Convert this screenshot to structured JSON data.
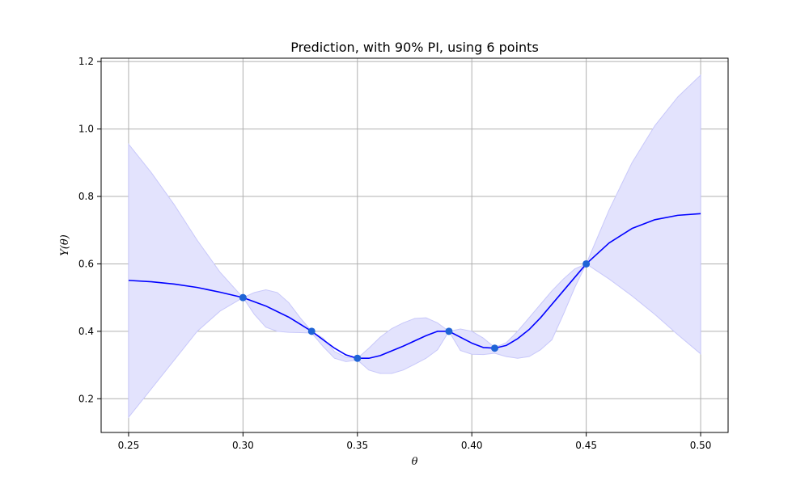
{
  "chart_data": {
    "type": "line",
    "title": "Prediction, with 90% PI, using 6 points",
    "xlabel": "θ",
    "ylabel": "Y(θ)",
    "xlim": [
      0.238,
      0.512
    ],
    "ylim": [
      0.1,
      1.21
    ],
    "grid": true,
    "xticks": [
      0.25,
      0.3,
      0.35,
      0.4,
      0.45,
      0.5
    ],
    "xtick_labels": [
      "0.25",
      "0.30",
      "0.35",
      "0.40",
      "0.45",
      "0.50"
    ],
    "yticks": [
      0.2,
      0.4,
      0.6,
      0.8,
      1.0,
      1.2
    ],
    "ytick_labels": [
      "0.2",
      "0.4",
      "0.6",
      "0.8",
      "1.0",
      "1.2"
    ],
    "colors": {
      "line": "#0000ff",
      "band": "#e3e3fd",
      "band_edge": "#c8c8fa",
      "points": "#1f64d6",
      "grid": "#b0b0b0"
    },
    "prediction": {
      "x": [
        0.25,
        0.26,
        0.27,
        0.28,
        0.29,
        0.3,
        0.31,
        0.32,
        0.33,
        0.34,
        0.345,
        0.35,
        0.355,
        0.36,
        0.37,
        0.38,
        0.385,
        0.39,
        0.4,
        0.405,
        0.41,
        0.415,
        0.42,
        0.425,
        0.43,
        0.44,
        0.45,
        0.46,
        0.47,
        0.48,
        0.49,
        0.5
      ],
      "y": [
        0.551,
        0.547,
        0.54,
        0.53,
        0.516,
        0.5,
        0.475,
        0.442,
        0.4,
        0.35,
        0.33,
        0.32,
        0.32,
        0.328,
        0.356,
        0.387,
        0.4,
        0.4,
        0.365,
        0.352,
        0.35,
        0.358,
        0.378,
        0.405,
        0.44,
        0.52,
        0.6,
        0.662,
        0.705,
        0.731,
        0.744,
        0.749
      ]
    },
    "interval": {
      "x": [
        0.25,
        0.26,
        0.27,
        0.28,
        0.29,
        0.3,
        0.305,
        0.31,
        0.315,
        0.32,
        0.325,
        0.33,
        0.335,
        0.34,
        0.345,
        0.35,
        0.355,
        0.36,
        0.365,
        0.37,
        0.375,
        0.38,
        0.385,
        0.39,
        0.395,
        0.4,
        0.405,
        0.41,
        0.415,
        0.42,
        0.425,
        0.43,
        0.435,
        0.44,
        0.445,
        0.45,
        0.46,
        0.47,
        0.48,
        0.49,
        0.5
      ],
      "lower": [
        0.145,
        0.23,
        0.315,
        0.4,
        0.46,
        0.5,
        0.45,
        0.412,
        0.4,
        0.397,
        0.396,
        0.395,
        0.355,
        0.32,
        0.31,
        0.315,
        0.285,
        0.275,
        0.275,
        0.285,
        0.302,
        0.32,
        0.345,
        0.4,
        0.343,
        0.332,
        0.331,
        0.335,
        0.325,
        0.32,
        0.325,
        0.345,
        0.375,
        0.45,
        0.53,
        0.6,
        0.555,
        0.505,
        0.45,
        0.39,
        0.333
      ],
      "upper": [
        0.955,
        0.87,
        0.775,
        0.67,
        0.575,
        0.5,
        0.515,
        0.523,
        0.515,
        0.485,
        0.44,
        0.4,
        0.38,
        0.34,
        0.323,
        0.32,
        0.35,
        0.383,
        0.408,
        0.425,
        0.438,
        0.44,
        0.425,
        0.4,
        0.407,
        0.4,
        0.38,
        0.352,
        0.366,
        0.4,
        0.44,
        0.48,
        0.52,
        0.555,
        0.585,
        0.6,
        0.76,
        0.9,
        1.01,
        1.095,
        1.16
      ]
    },
    "observations": {
      "x": [
        0.3,
        0.33,
        0.35,
        0.39,
        0.41,
        0.45
      ],
      "y": [
        0.5,
        0.4,
        0.32,
        0.4,
        0.35,
        0.6
      ]
    }
  }
}
